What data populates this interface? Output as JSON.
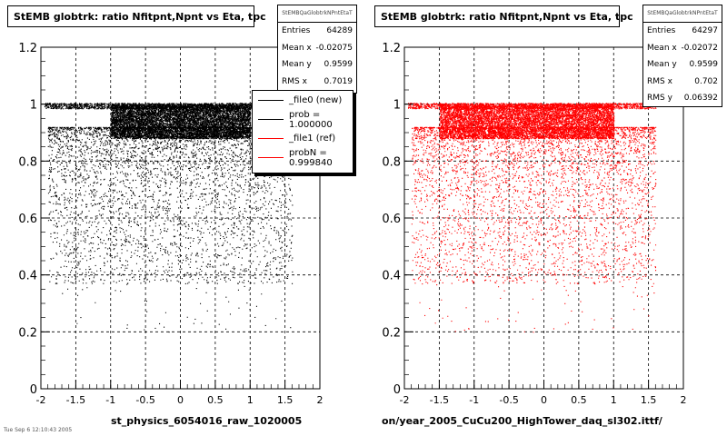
{
  "footer": "Tue Sep 6 12:10:43 2005",
  "chart_data": [
    {
      "type": "scatter",
      "title": "StEMB globtrk: ratio Nfitpnt,Npnt vs Eta, tpc",
      "xlabel": "st_physics_6054016_raw_1020005",
      "ylabel": "",
      "xlim": [
        -2,
        2
      ],
      "ylim": [
        0,
        1.2
      ],
      "xticks": [
        "-2",
        "-1.5",
        "-1",
        "-0.5",
        "0",
        "0.5",
        "1",
        "1.5",
        "2"
      ],
      "yticks": [
        "0",
        "0.2",
        "0.4",
        "0.6",
        "0.8",
        "1",
        "1.2"
      ],
      "grid": true,
      "marker_color": "#000000",
      "stats": {
        "name": "StEMBQaGlobtrkNPntEtaT",
        "rows": [
          {
            "label": "Entries",
            "value": "64289"
          },
          {
            "label": "Mean x",
            "value": "-0.02075"
          },
          {
            "label": "Mean y",
            "value": "0.9599"
          },
          {
            "label": "RMS x",
            "value": "0.7019"
          }
        ]
      },
      "legend": {
        "placement": "top-right",
        "entries": [
          {
            "label": "_file0 (new)",
            "color": "#000000"
          },
          {
            "label": "prob = 1.000000",
            "color": "#000000"
          },
          {
            "label": "_file1 (ref)",
            "color": "#ff0000"
          },
          {
            "label": "probN = 0.999840",
            "color": "#ff0000"
          }
        ]
      },
      "density_profile": {
        "band_y": [
          0.88,
          1.0
        ],
        "band_x": [
          -1.0,
          1.0
        ],
        "scatter_ys": [
          0.95,
          0.9,
          0.85,
          0.8,
          0.75,
          0.7,
          0.65,
          0.6,
          0.55,
          0.5
        ]
      }
    },
    {
      "type": "scatter",
      "title": "StEMB globtrk: ratio Nfitpnt,Npnt vs Eta, tpc",
      "xlabel": "on/year_2005_CuCu200_HighTower_daq_sl302.ittf/",
      "ylabel": "",
      "xlim": [
        -2,
        2
      ],
      "ylim": [
        0,
        1.2
      ],
      "xticks": [
        "-2",
        "-1.5",
        "-1",
        "-0.5",
        "0",
        "0.5",
        "1",
        "1.5",
        "2"
      ],
      "yticks": [
        "0",
        "0.2",
        "0.4",
        "0.6",
        "0.8",
        "1",
        "1.2"
      ],
      "grid": true,
      "marker_color": "#ff0000",
      "stats": {
        "name": "StEMBQaGlobtrkNPntEtaT",
        "rows": [
          {
            "label": "Entries",
            "value": "64297"
          },
          {
            "label": "Mean x",
            "value": "-0.02072"
          },
          {
            "label": "Mean y",
            "value": "0.9599"
          },
          {
            "label": "RMS x",
            "value": "0.702"
          },
          {
            "label": "RMS y",
            "value": "0.06392"
          }
        ]
      },
      "density_profile": {
        "band_y": [
          0.88,
          1.0
        ],
        "band_x": [
          -1.5,
          1.0
        ],
        "scatter_ys": [
          0.95,
          0.9,
          0.85,
          0.8,
          0.75,
          0.7,
          0.65,
          0.6,
          0.55,
          0.5
        ]
      }
    }
  ]
}
